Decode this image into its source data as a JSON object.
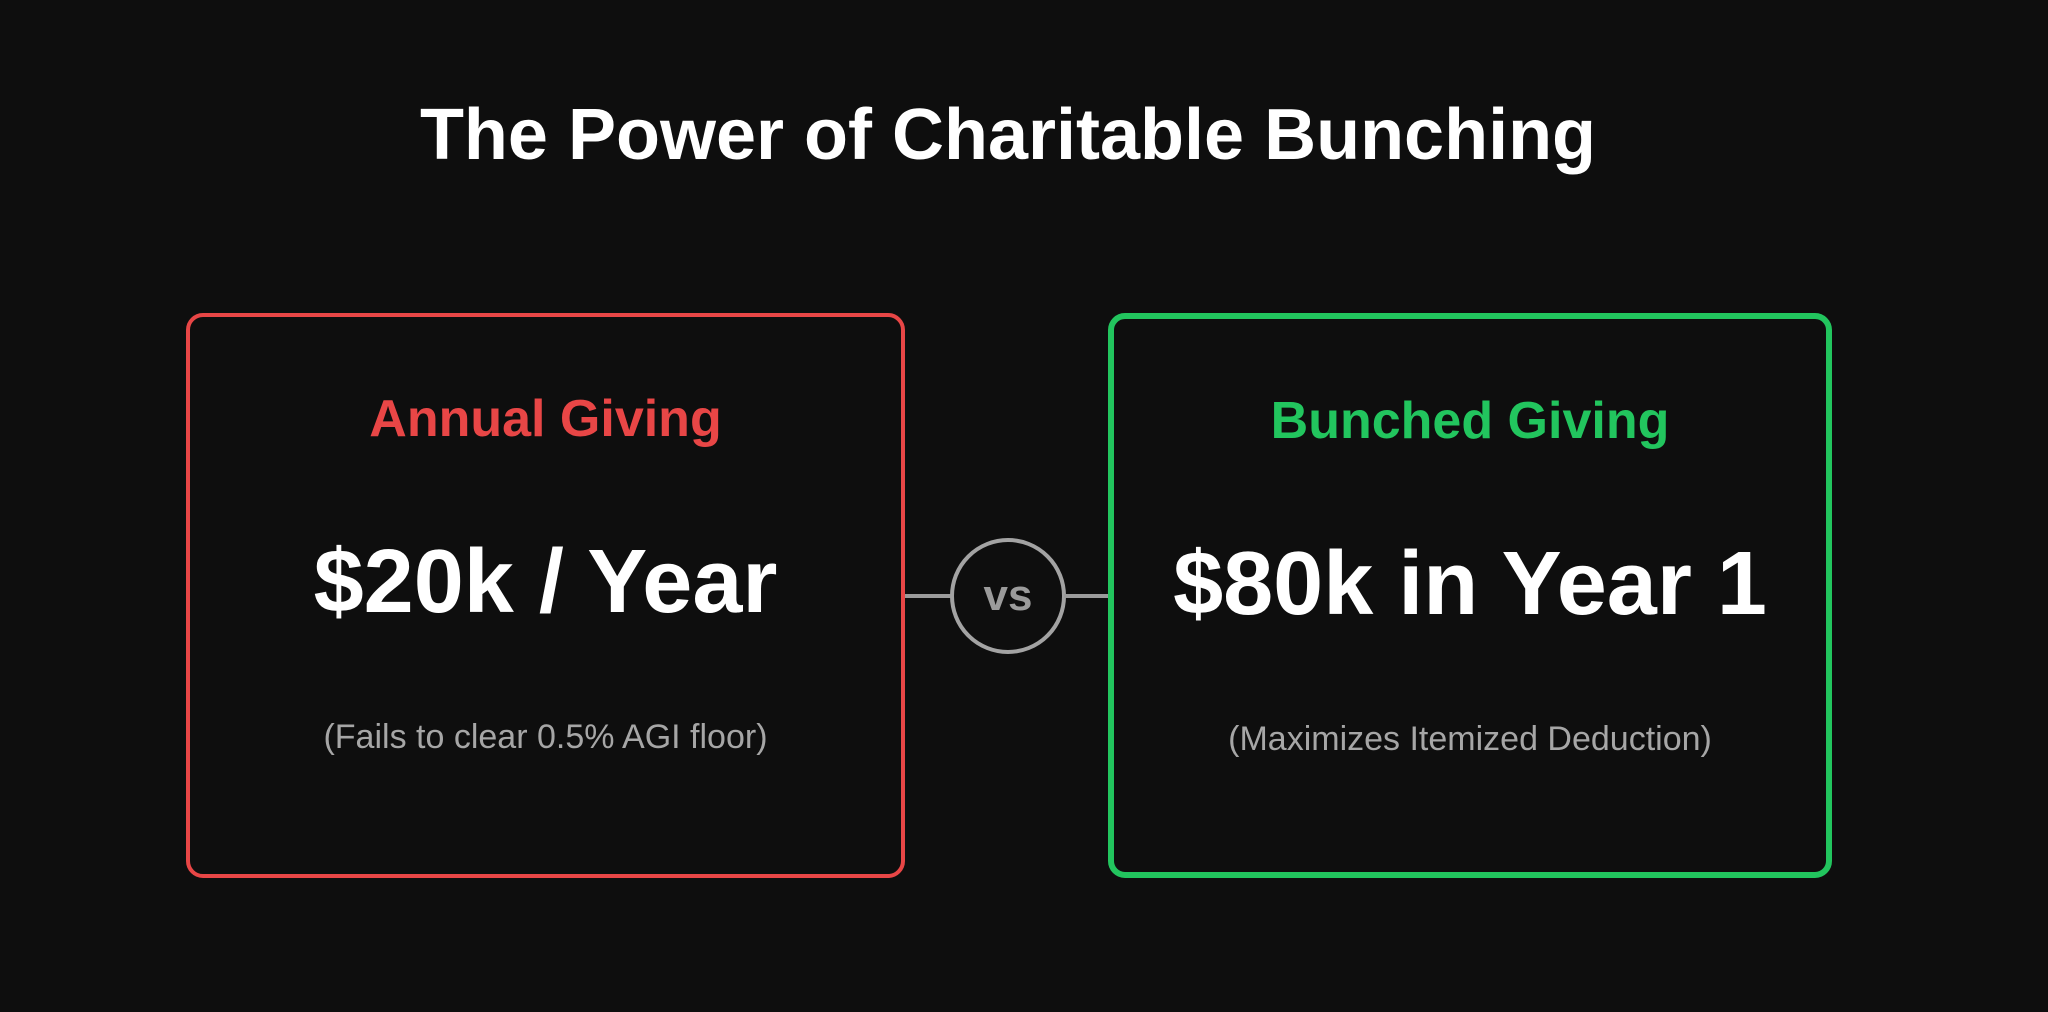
{
  "title": "The Power of Charitable Bunching",
  "annual": {
    "heading": "Annual Giving",
    "amount": "$20k / Year",
    "note": "(Fails to clear 0.5% AGI floor)",
    "color": "#e84646"
  },
  "bunched": {
    "heading": "Bunched Giving",
    "amount": "$80k in Year 1",
    "note": "(Maximizes Itemized Deduction)",
    "color": "#22c55e"
  },
  "versus": {
    "label": "vs"
  },
  "colors": {
    "background": "#0e0e0e",
    "text": "#ffffff",
    "muted": "#a6a6a6",
    "connector": "#9b9b9b"
  }
}
